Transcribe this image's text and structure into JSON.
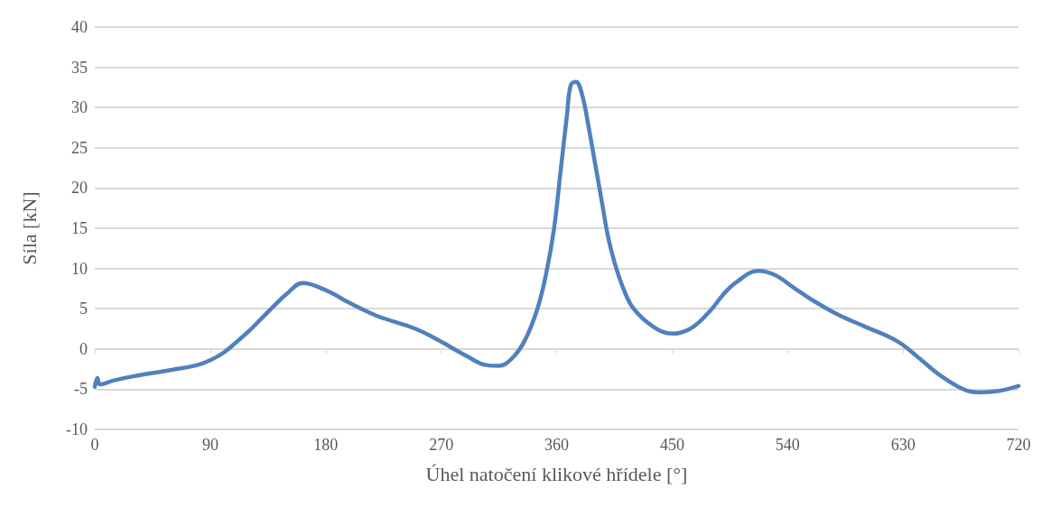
{
  "chart_data": {
    "type": "line",
    "xlabel": "Úhel natočení klikové hřídele [°]",
    "ylabel": "Síla [kN]",
    "xlim": [
      0,
      720
    ],
    "xticks": [
      0,
      90,
      180,
      270,
      360,
      450,
      540,
      630,
      720
    ],
    "ylim": [
      -10,
      40
    ],
    "yticks": [
      -10,
      -5,
      0,
      5,
      10,
      15,
      20,
      25,
      30,
      35,
      40
    ],
    "grid": "y",
    "marker": "none",
    "line_style": "solid",
    "series": [
      {
        "color": "#4f81bd",
        "x": [
          0,
          2,
          4,
          15,
          30,
          60,
          80,
          90,
          100,
          110,
          120,
          130,
          140,
          150,
          162,
          180,
          200,
          220,
          250,
          270,
          290,
          305,
          315,
          325,
          335,
          345,
          352,
          358,
          363,
          368,
          371,
          375,
          380,
          385,
          390,
          395,
          400,
          405,
          412,
          420,
          435,
          450,
          465,
          480,
          490,
          500,
          517,
          530,
          545,
          560,
          580,
          600,
          625,
          640,
          660,
          680,
          690,
          705,
          720
        ],
        "values": [
          -4.7,
          -3.6,
          -4.4,
          -3.9,
          -3.4,
          -2.6,
          -2.0,
          -1.4,
          -0.5,
          0.8,
          2.2,
          3.8,
          5.4,
          6.9,
          8.2,
          7.3,
          5.6,
          4.1,
          2.5,
          0.9,
          -0.9,
          -2.0,
          -2.1,
          -1.2,
          1.0,
          5.0,
          9.5,
          15,
          22,
          29,
          32.8,
          33.2,
          31.5,
          27.5,
          23,
          18.5,
          14,
          10.8,
          7.5,
          5,
          2.8,
          1.9,
          2.6,
          4.8,
          6.8,
          8.3,
          9.7,
          9.2,
          7.6,
          6.0,
          4.2,
          2.8,
          1.0,
          -0.8,
          -3.4,
          -5.2,
          -5.4,
          -5.2,
          -4.6
        ]
      }
    ]
  }
}
